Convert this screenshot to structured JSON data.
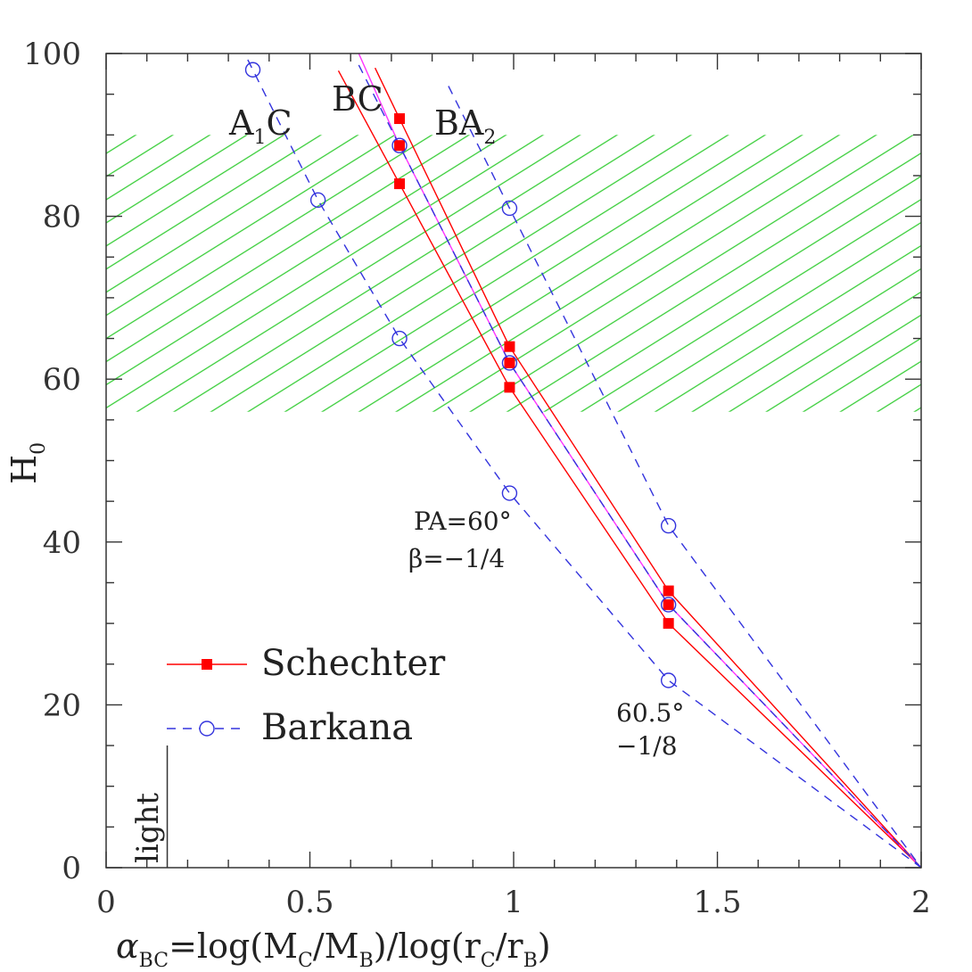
{
  "chart_data": {
    "type": "line",
    "xlabel": {
      "main": "α",
      "sub": "BC",
      "rest_parts": [
        "=log(M",
        "C",
        "/M",
        "B",
        ")/log(r",
        "C",
        "/r",
        "B",
        ")"
      ]
    },
    "ylabel": {
      "main": "H",
      "sub": "0"
    },
    "xlim": [
      0,
      2
    ],
    "ylim": [
      0,
      100
    ],
    "x_ticks": [
      0,
      0.5,
      1,
      1.5,
      2
    ],
    "x_tick_labels": [
      "0",
      "0.5",
      "1",
      "1.5",
      "2"
    ],
    "y_ticks": [
      0,
      20,
      40,
      60,
      80,
      100
    ],
    "y_tick_labels": [
      "0",
      "20",
      "40",
      "60",
      "80",
      "100"
    ],
    "grid": false,
    "shaded_band": {
      "y_from": 56,
      "y_to": 90,
      "color": "#33cc33",
      "pattern": "diagonal-hatch"
    },
    "light_marker": {
      "x": 0.15,
      "label": "light"
    },
    "legend": {
      "placement": "lower-left",
      "entries": [
        {
          "label": "Schechter",
          "color": "#ff0000",
          "marker": "filled-square",
          "line": "solid"
        },
        {
          "label": "Barkana",
          "color": "#3333dd",
          "marker": "open-circle",
          "line": "dashed"
        }
      ]
    },
    "series": [
      {
        "name": "Schechter",
        "color": "#ff0000",
        "marker": "filled-square",
        "line": "solid",
        "x": [
          0.72,
          0.99,
          1.38,
          2.0
        ],
        "y": [
          84,
          59,
          30,
          0
        ],
        "line_extends_to_x": 0.57
      },
      {
        "name": "Schechter",
        "color": "#ff0000",
        "marker": "filled-square",
        "line": "solid",
        "x": [
          0.72,
          0.99,
          1.38,
          2.0
        ],
        "y": [
          92,
          64,
          34,
          0
        ],
        "line_extends_to_x": 0.66
      },
      {
        "name": "Schechter",
        "color": "#ff0000",
        "marker": "filled-square",
        "line": "none",
        "x": [
          0.72,
          0.99,
          1.38
        ],
        "y": [
          88.7,
          62,
          32.3
        ]
      },
      {
        "name": "",
        "color": "#ff33ff",
        "marker": "none",
        "line": "solid",
        "x": [
          0.62,
          0.72,
          0.99,
          1.38,
          2.0
        ],
        "y": [
          100,
          88.7,
          62,
          32.3,
          0
        ]
      },
      {
        "name": "Barkana",
        "color": "#3333dd",
        "marker": "open-circle",
        "line": "dashed",
        "x": [
          0.36,
          0.52,
          0.72,
          0.99,
          1.38,
          2.0
        ],
        "y": [
          98,
          82,
          65,
          46,
          23,
          0
        ],
        "line_extends_to_x": 0.33
      },
      {
        "name": "Barkana",
        "color": "#3333dd",
        "marker": "open-circle",
        "line": "dashed",
        "x": [
          0.72,
          0.99,
          1.38,
          2.0
        ],
        "y": [
          88.7,
          62,
          32.3,
          0
        ],
        "line_extends_to_x": 0.62
      },
      {
        "name": "Barkana",
        "color": "#3333dd",
        "marker": "open-circle",
        "line": "dashed",
        "x": [
          0.99,
          1.38,
          2.0
        ],
        "y": [
          81,
          42,
          0
        ],
        "line_extends_to_x": 0.84
      }
    ],
    "annotations": {
      "curve_labels": [
        {
          "id": "a1c",
          "main": "A",
          "sub": "1",
          "tail": "C",
          "x": 0.3,
          "y": 90
        },
        {
          "id": "bc",
          "main": "BC",
          "sub": "",
          "tail": "",
          "x": 0.56,
          "y": 93
        },
        {
          "id": "ba2",
          "main": "BA",
          "sub": "2",
          "tail": "",
          "x": 0.81,
          "y": 90
        }
      ],
      "model1_line1": "PA=60°",
      "model1_line2": "β=−1/4",
      "model2_line1": "60.5°",
      "model2_line2": "−1/8"
    }
  }
}
